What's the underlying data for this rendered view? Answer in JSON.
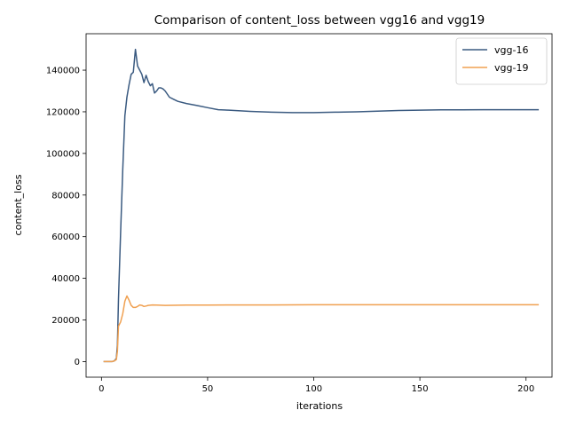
{
  "chart_data": {
    "type": "line",
    "title": "Comparison of content_loss between vgg16 and vgg19",
    "xlabel": "iterations",
    "ylabel": "content_loss",
    "xlim": [
      -7.25,
      212.25
    ],
    "ylim": [
      -7500,
      157500
    ],
    "x_ticks": [
      0,
      50,
      100,
      150,
      200
    ],
    "y_ticks": [
      0,
      20000,
      40000,
      60000,
      80000,
      100000,
      120000,
      140000
    ],
    "grid": false,
    "legend_position": "top-right",
    "series": [
      {
        "name": "vgg-16",
        "color": "#3a5a80",
        "points": [
          [
            1,
            0
          ],
          [
            3,
            0
          ],
          [
            5,
            0
          ],
          [
            6,
            300
          ],
          [
            7,
            1500
          ],
          [
            7.5,
            8000
          ],
          [
            8,
            30000
          ],
          [
            9,
            62000
          ],
          [
            10,
            92000
          ],
          [
            11,
            118000
          ],
          [
            12,
            127000
          ],
          [
            13,
            133000
          ],
          [
            14,
            138000
          ],
          [
            15,
            139000
          ],
          [
            16,
            150000
          ],
          [
            17,
            142000
          ],
          [
            18,
            140000
          ],
          [
            19,
            138000
          ],
          [
            20,
            134000
          ],
          [
            21,
            137500
          ],
          [
            22,
            134500
          ],
          [
            23,
            132500
          ],
          [
            24,
            133500
          ],
          [
            25,
            129000
          ],
          [
            26,
            130000
          ],
          [
            27,
            131500
          ],
          [
            28,
            131500
          ],
          [
            29,
            131000
          ],
          [
            30,
            130000
          ],
          [
            32,
            127000
          ],
          [
            34,
            126000
          ],
          [
            36,
            125000
          ],
          [
            40,
            124000
          ],
          [
            45,
            123000
          ],
          [
            50,
            122000
          ],
          [
            55,
            121000
          ],
          [
            60,
            120800
          ],
          [
            70,
            120200
          ],
          [
            80,
            119800
          ],
          [
            90,
            119600
          ],
          [
            100,
            119600
          ],
          [
            110,
            119800
          ],
          [
            120,
            120000
          ],
          [
            130,
            120300
          ],
          [
            140,
            120600
          ],
          [
            150,
            120800
          ],
          [
            160,
            120900
          ],
          [
            170,
            120900
          ],
          [
            180,
            121000
          ],
          [
            190,
            121000
          ],
          [
            200,
            121000
          ],
          [
            206,
            121000
          ]
        ]
      },
      {
        "name": "vgg-19",
        "color": "#f0a050",
        "points": [
          [
            1,
            0
          ],
          [
            3,
            0
          ],
          [
            5,
            0
          ],
          [
            6,
            300
          ],
          [
            7,
            1000
          ],
          [
            7.5,
            5000
          ],
          [
            8,
            17000
          ],
          [
            9,
            19000
          ],
          [
            10,
            23000
          ],
          [
            11,
            29000
          ],
          [
            12,
            31500
          ],
          [
            13,
            29500
          ],
          [
            14,
            27000
          ],
          [
            15,
            26000
          ],
          [
            16,
            26000
          ],
          [
            17,
            26500
          ],
          [
            18,
            27200
          ],
          [
            19,
            27000
          ],
          [
            20,
            26500
          ],
          [
            21,
            26700
          ],
          [
            22,
            27000
          ],
          [
            24,
            27200
          ],
          [
            26,
            27100
          ],
          [
            30,
            27000
          ],
          [
            40,
            27100
          ],
          [
            50,
            27100
          ],
          [
            60,
            27200
          ],
          [
            80,
            27200
          ],
          [
            100,
            27300
          ],
          [
            120,
            27300
          ],
          [
            140,
            27300
          ],
          [
            160,
            27300
          ],
          [
            180,
            27300
          ],
          [
            200,
            27300
          ],
          [
            206,
            27300
          ]
        ]
      }
    ]
  }
}
